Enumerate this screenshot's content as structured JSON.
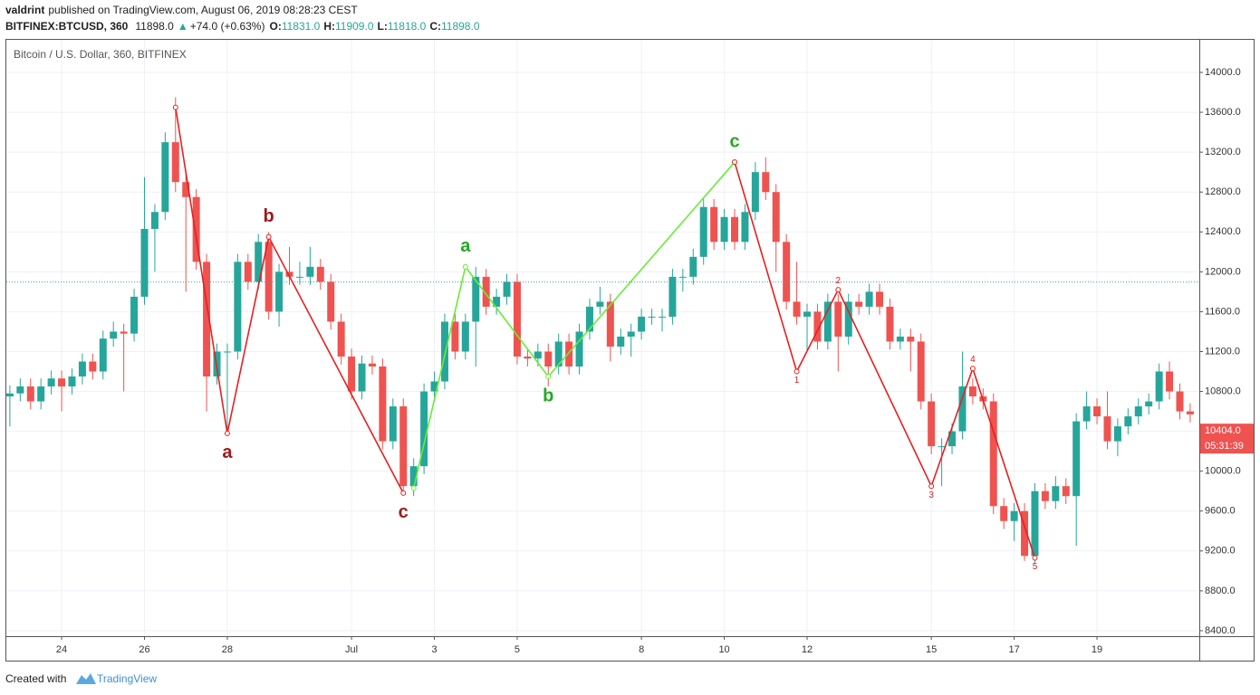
{
  "header": {
    "author": "valdrint",
    "published": "published on TradingView.com, August 06, 2019 08:28:23 CEST",
    "symbol": "BITFINEX:BTCUSD, 360",
    "last": "11898.0",
    "arrow": "▲",
    "change": "+74.0 (+0.63%)",
    "ohlc": [
      {
        "label": "O:",
        "value": "11831.0"
      },
      {
        "label": "H:",
        "value": "11909.0"
      },
      {
        "label": "L:",
        "value": "11818.0"
      },
      {
        "label": "C:",
        "value": "11898.0"
      }
    ]
  },
  "footer": {
    "created": "Created with",
    "brand": "TradingView"
  },
  "chart_data": {
    "type": "candlestick",
    "legend": "Bitcoin / U.S. Dollar, 360, BITFINEX",
    "up_color": "#26a69a",
    "down_color": "#ef5350",
    "grid": true,
    "categories": [
      null,
      null,
      null,
      null,
      null,
      "24",
      null,
      null,
      null,
      null,
      null,
      null,
      null,
      "26",
      null,
      null,
      null,
      null,
      null,
      null,
      null,
      "28",
      null,
      null,
      null,
      null,
      null,
      null,
      null,
      null,
      null,
      null,
      null,
      "Jul",
      null,
      null,
      null,
      null,
      null,
      null,
      null,
      "3",
      null,
      null,
      null,
      null,
      null,
      null,
      null,
      "5",
      null,
      null,
      null,
      null,
      null,
      null,
      null,
      null,
      null,
      null,
      null,
      "8",
      null,
      null,
      null,
      null,
      null,
      null,
      null,
      "10",
      null,
      null,
      null,
      null,
      null,
      null,
      null,
      "12",
      null,
      null,
      null,
      null,
      null,
      null,
      null,
      null,
      null,
      null,
      null,
      "15",
      null,
      null,
      null,
      null,
      null,
      null,
      null,
      "17",
      null,
      null,
      null,
      null,
      null,
      null,
      null,
      "19",
      null,
      null,
      null,
      null,
      null,
      null,
      null,
      null,
      null
    ],
    "open": [
      10750,
      10780,
      10850,
      10700,
      10850,
      10930,
      10850,
      10950,
      11100,
      11000,
      11330,
      11400,
      11380,
      11750,
      12430,
      12600,
      13300,
      12900,
      12750,
      12100,
      10950,
      11200,
      11200,
      12100,
      11900,
      12300,
      11600,
      12000,
      11950,
      11950,
      12050,
      11900,
      11500,
      11150,
      10800,
      11080,
      11050,
      10300,
      10650,
      9850,
      10050,
      10800,
      10900,
      11500,
      11200,
      11500,
      11950,
      11650,
      11750,
      11900,
      11150,
      11130,
      11200,
      11050,
      11300,
      11050,
      11400,
      11650,
      11700,
      11250,
      11350,
      11400,
      11550,
      11550,
      11550,
      11950,
      11950,
      12150,
      12650,
      12300,
      12550,
      12300,
      12600,
      13000,
      12800,
      12300,
      11700,
      11550,
      11600,
      11300,
      11700,
      11350,
      11700,
      11650,
      11800,
      11650,
      11300,
      11350,
      11300,
      10700,
      10250,
      10250,
      10400,
      10850,
      10750,
      10700,
      9650,
      9500,
      9600,
      9150,
      9800,
      9700,
      9850,
      9750,
      10500,
      10650,
      10550,
      10300,
      10450,
      10550,
      10650,
      10700,
      11000,
      10800,
      10600
    ],
    "high": [
      10860,
      10930,
      10930,
      10930,
      11010,
      11010,
      11030,
      11180,
      11180,
      11410,
      11500,
      11480,
      11830,
      12950,
      12680,
      13400,
      13750,
      12980,
      12830,
      12180,
      11280,
      11280,
      12180,
      12180,
      12380,
      12400,
      12080,
      12250,
      12100,
      12250,
      12130,
      11980,
      11580,
      11230,
      11160,
      11160,
      11130,
      10730,
      10730,
      10130,
      10880,
      11000,
      11580,
      11580,
      11580,
      12050,
      12030,
      11830,
      11980,
      11980,
      11230,
      11280,
      11280,
      11380,
      11380,
      11480,
      11730,
      11850,
      11780,
      11430,
      11480,
      11630,
      11630,
      11630,
      12030,
      12030,
      12230,
      12730,
      12730,
      12630,
      12630,
      12680,
      13100,
      13150,
      12880,
      12380,
      12100,
      11680,
      11680,
      11780,
      11780,
      11780,
      11780,
      11880,
      11880,
      11730,
      11430,
      11430,
      11380,
      10780,
      10330,
      10480,
      11200,
      10930,
      10830,
      10780,
      9730,
      9680,
      9680,
      9880,
      9880,
      9950,
      9930,
      10580,
      10800,
      10730,
      10800,
      10530,
      10630,
      10730,
      10780,
      11080,
      11100,
      10880,
      10680
    ],
    "low": [
      10450,
      10700,
      10620,
      10620,
      10770,
      10600,
      10770,
      10870,
      10920,
      10920,
      11250,
      10800,
      11300,
      11670,
      12000,
      12520,
      12800,
      11800,
      12020,
      10600,
      10870,
      10400,
      11120,
      11820,
      11820,
      11520,
      11450,
      11870,
      11870,
      11870,
      11820,
      11420,
      11070,
      10720,
      10720,
      10970,
      10220,
      10220,
      9800,
      9750,
      9970,
      10720,
      10820,
      11120,
      11120,
      11050,
      11570,
      11570,
      11670,
      11070,
      11050,
      11050,
      10850,
      10970,
      10970,
      10970,
      11320,
      11570,
      11100,
      11170,
      11150,
      11320,
      11470,
      11400,
      11470,
      11800,
      11870,
      12070,
      12220,
      12220,
      12220,
      12220,
      12520,
      12720,
      12000,
      11620,
      11470,
      11200,
      11220,
      11220,
      11000,
      11270,
      11570,
      11570,
      11570,
      11220,
      11220,
      11000,
      10620,
      10170,
      9850,
      10170,
      10320,
      10670,
      10620,
      9570,
      9420,
      9300,
      9100,
      9070,
      9620,
      9620,
      9670,
      9250,
      10420,
      10470,
      10220,
      10150,
      10370,
      10470,
      10570,
      10620,
      10720,
      10520,
      10490
    ],
    "close": [
      10780,
      10850,
      10700,
      10850,
      10930,
      10850,
      10950,
      11100,
      11000,
      11330,
      11400,
      11380,
      11750,
      12430,
      12600,
      13300,
      12900,
      12750,
      12100,
      10950,
      11200,
      11200,
      12100,
      11900,
      12300,
      11600,
      12000,
      11950,
      11950,
      12050,
      11900,
      11500,
      11150,
      10800,
      11080,
      11050,
      10300,
      10650,
      9850,
      10050,
      10800,
      10900,
      11500,
      11200,
      11500,
      11950,
      11650,
      11750,
      11900,
      11150,
      11130,
      11200,
      11050,
      11300,
      11050,
      11400,
      11650,
      11700,
      11250,
      11350,
      11400,
      11550,
      11550,
      11550,
      11950,
      11950,
      12150,
      12650,
      12300,
      12550,
      12300,
      12600,
      13000,
      12800,
      12300,
      11700,
      11550,
      11600,
      11300,
      11700,
      11350,
      11700,
      11650,
      11800,
      11650,
      11300,
      11350,
      11300,
      10700,
      10250,
      10250,
      10400,
      10850,
      10750,
      10700,
      9650,
      9500,
      9600,
      9150,
      9800,
      9700,
      9850,
      9750,
      10500,
      10650,
      10550,
      10300,
      10450,
      10550,
      10650,
      10700,
      11000,
      10800,
      10600,
      10570
    ],
    "ylim": [
      8345,
      14327
    ],
    "yticks": [
      {
        "value": 8400,
        "label": "8400.0"
      },
      {
        "value": 8800,
        "label": "8800.0"
      },
      {
        "value": 9200,
        "label": "9200.0"
      },
      {
        "value": 9600,
        "label": "9600.0"
      },
      {
        "value": 10000,
        "label": "10000.0"
      },
      {
        "value": 10400,
        "label": "10400.0"
      },
      {
        "value": 10800,
        "label": "10800.0"
      },
      {
        "value": 11200,
        "label": "11200.0"
      },
      {
        "value": 11600,
        "label": "11600.0"
      },
      {
        "value": 12000,
        "label": "12000.0"
      },
      {
        "value": 12400,
        "label": "12400.0"
      },
      {
        "value": 12800,
        "label": "12800.0"
      },
      {
        "value": 13200,
        "label": "13200.0"
      },
      {
        "value": 13600,
        "label": "13600.0"
      },
      {
        "value": 14000,
        "label": "14000.0"
      }
    ],
    "price_line": {
      "value": 11898,
      "color": "#3aa0c0"
    },
    "price_tag": {
      "value": 10404,
      "label": "10404.0",
      "countdown": "05:31:39",
      "color": "#ef5350"
    },
    "waves": [
      {
        "color": "#e62020",
        "label_color": "#9e1a1a",
        "points": [
          {
            "at": 16,
            "value": 13650,
            "label": null
          },
          {
            "at": 21,
            "value": 10380,
            "label": "a"
          },
          {
            "at": 25,
            "value": 12350,
            "label": "b"
          },
          {
            "at": 38,
            "value": 9780,
            "label": "c"
          }
        ]
      },
      {
        "color": "#66ee33",
        "label_color": "#22aa22",
        "points": [
          {
            "at": 39,
            "value": 9830,
            "label": null
          },
          {
            "at": 44,
            "value": 12050,
            "label": "a"
          },
          {
            "at": 52,
            "value": 10950,
            "label": "b"
          },
          {
            "at": 70,
            "value": 13100,
            "label": "c"
          }
        ]
      },
      {
        "color": "#e62020",
        "label_color": "#d42020",
        "points": [
          {
            "at": 70,
            "value": 13100,
            "label": null
          },
          {
            "at": 76,
            "value": 11000,
            "label": "1"
          },
          {
            "at": 80,
            "value": 11820,
            "label": "2"
          },
          {
            "at": 89,
            "value": 9850,
            "label": "3"
          },
          {
            "at": 93,
            "value": 11030,
            "label": "4"
          },
          {
            "at": 99,
            "value": 9130,
            "label": "5"
          }
        ]
      }
    ]
  }
}
